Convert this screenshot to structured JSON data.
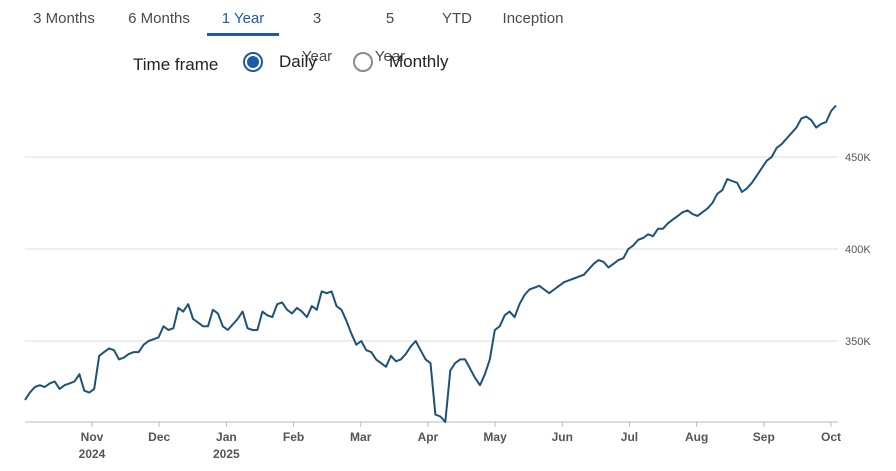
{
  "tabs": [
    {
      "label": "3 Months",
      "active": false
    },
    {
      "label": "6 Months",
      "active": false
    },
    {
      "label": "1 Year",
      "active": true
    },
    {
      "label": "3 Year",
      "active": false
    },
    {
      "label": "5 Year",
      "active": false
    },
    {
      "label": "YTD",
      "active": false
    },
    {
      "label": "Inception",
      "active": false
    }
  ],
  "timeframe": {
    "label": "Time frame",
    "options": [
      {
        "label": "Daily",
        "checked": true
      },
      {
        "label": "Monthly",
        "checked": false
      }
    ]
  },
  "colors": {
    "accent": "#1f5aa6",
    "line": "#1d5376",
    "grid": "#dddddd"
  },
  "chart_data": {
    "type": "line",
    "title": "",
    "xlabel": "",
    "ylabel": "",
    "ylim": [
      306,
      481
    ],
    "y_ticks": [
      {
        "value": 350,
        "label": "350K"
      },
      {
        "value": 400,
        "label": "400K"
      },
      {
        "value": 450,
        "label": "450K"
      }
    ],
    "x_ticks": [
      {
        "label": "Nov",
        "sublabel": "2024"
      },
      {
        "label": "Dec",
        "sublabel": ""
      },
      {
        "label": "Jan",
        "sublabel": "2025"
      },
      {
        "label": "Feb",
        "sublabel": ""
      },
      {
        "label": "Mar",
        "sublabel": ""
      },
      {
        "label": "Apr",
        "sublabel": ""
      },
      {
        "label": "May",
        "sublabel": ""
      },
      {
        "label": "Jun",
        "sublabel": ""
      },
      {
        "label": "Jul",
        "sublabel": ""
      },
      {
        "label": "Aug",
        "sublabel": ""
      },
      {
        "label": "Sep",
        "sublabel": ""
      },
      {
        "label": "Oct",
        "sublabel": ""
      }
    ],
    "grid": true,
    "series": [
      {
        "values": [
          318,
          322,
          325,
          326,
          325,
          327,
          328,
          324,
          326,
          327,
          328,
          332,
          323,
          322,
          324,
          342,
          344,
          346,
          345,
          340,
          341,
          343,
          344,
          344,
          348,
          350,
          351,
          352,
          358,
          356,
          357,
          368,
          366,
          370,
          362,
          360,
          358,
          358,
          367,
          365,
          358,
          356,
          359,
          362,
          366,
          357,
          356,
          356,
          366,
          364,
          363,
          370,
          371,
          367,
          365,
          368,
          366,
          363,
          369,
          367,
          377,
          376,
          377,
          369,
          367,
          361,
          354,
          348,
          350,
          345,
          344,
          340,
          338,
          336,
          342,
          339,
          340,
          343,
          347,
          350,
          345,
          340,
          338,
          310,
          309,
          306,
          334,
          338,
          340,
          340,
          335,
          330,
          326,
          332,
          340,
          356,
          358,
          364,
          366,
          363,
          370,
          375,
          378,
          379,
          380,
          378,
          376,
          378,
          380,
          382,
          383,
          384,
          385,
          386,
          389,
          392,
          394,
          393,
          390,
          392,
          394,
          395,
          400,
          402,
          405,
          406,
          408,
          407,
          411,
          411,
          414,
          416,
          418,
          420,
          421,
          419,
          418,
          420,
          422,
          425,
          430,
          432,
          438,
          437,
          436,
          431,
          433,
          436,
          440,
          444,
          448,
          450,
          455,
          457,
          460,
          463,
          466,
          471,
          472,
          470,
          466,
          468,
          469,
          475,
          478
        ]
      }
    ]
  }
}
